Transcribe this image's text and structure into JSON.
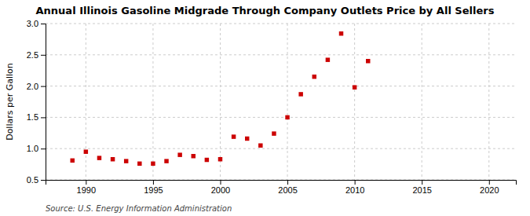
{
  "chart_data": {
    "type": "scatter",
    "title": "Annual Illinois Gasoline Midgrade Through Company Outlets Price by All Sellers",
    "y_label": "Dollars per Gallon",
    "source": "Source: U.S. Energy Information Administration",
    "x": [
      1989,
      1990,
      1991,
      1992,
      1993,
      1994,
      1995,
      1996,
      1997,
      1998,
      1999,
      2000,
      2001,
      2002,
      2003,
      2004,
      2005,
      2006,
      2007,
      2008,
      2009,
      2010,
      2011
    ],
    "values": [
      0.81,
      0.95,
      0.85,
      0.83,
      0.8,
      0.76,
      0.76,
      0.8,
      0.9,
      0.88,
      0.82,
      0.83,
      1.19,
      1.16,
      1.05,
      1.24,
      1.5,
      1.87,
      2.15,
      2.42,
      2.84,
      1.98,
      2.4
    ],
    "color": "#cc0000",
    "marker": "square",
    "xlim": [
      1987,
      2022
    ],
    "xticks": [
      1990,
      1995,
      2000,
      2005,
      2010,
      2015,
      2020
    ],
    "ylim": [
      0.5,
      3.0
    ],
    "yticks": [
      0.5,
      {
        "value": 1.0,
        "label": "1.0"
      },
      1.5,
      {
        "value": 2.0,
        "label": "2.0"
      },
      2.5,
      {
        "value": 3.0,
        "label": "3.0"
      }
    ],
    "grid": true
  }
}
